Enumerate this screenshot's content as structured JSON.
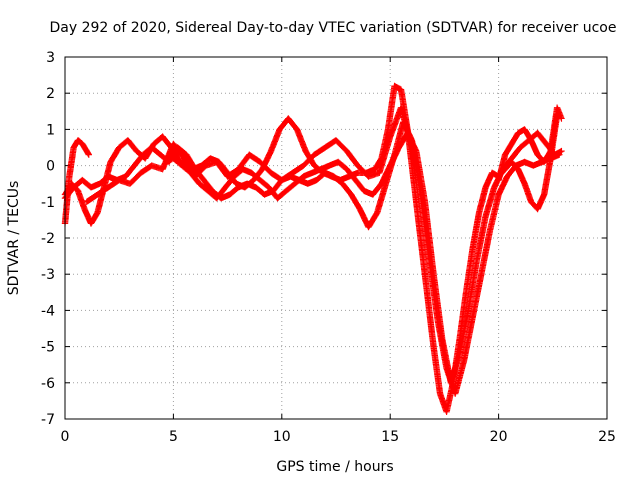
{
  "chart_data": {
    "type": "scatter",
    "title": "Day 292 of 2020, Sidereal Day-to-day VTEC variation (SDTVAR) for receiver ucoe",
    "xlabel": "GPS time / hours",
    "ylabel": "SDTVAR / TECUs",
    "xlim": [
      0,
      25
    ],
    "ylim": [
      -7,
      3
    ],
    "xticks": [
      0,
      5,
      10,
      15,
      20,
      25
    ],
    "yticks": [
      -7,
      -6,
      -5,
      -4,
      -3,
      -2,
      -1,
      0,
      1,
      2,
      3
    ],
    "grid": true,
    "marker": "+",
    "color": "#ff0000",
    "series": [
      {
        "x": [
          0.0,
          0.2,
          0.4,
          0.6,
          0.8,
          1.0,
          1.1
        ],
        "y": [
          -1.6,
          -0.3,
          0.5,
          0.7,
          0.6,
          0.4,
          0.3
        ]
      },
      {
        "x": [
          0.0,
          0.3,
          0.6,
          0.9,
          1.2,
          1.5,
          1.8,
          2.1,
          2.5,
          2.9,
          3.3,
          3.7,
          4.1,
          4.5,
          4.9,
          5.2,
          5.5,
          5.9,
          6.3,
          6.7,
          7.1,
          7.5,
          7.9,
          8.3,
          8.7,
          9.1,
          9.5,
          9.9,
          10.3,
          10.7,
          11.1,
          11.5,
          11.9,
          12.3,
          12.7,
          13.1,
          13.5,
          13.9,
          14.3,
          14.6,
          14.9,
          15.2,
          15.5,
          15.8,
          16.1,
          16.4,
          16.7,
          17.0,
          17.3,
          17.6,
          17.9,
          18.2,
          18.5,
          18.8,
          19.1,
          19.4,
          19.7,
          20.0,
          20.3,
          20.6,
          20.9,
          21.2,
          21.5,
          21.8,
          22.1,
          22.4,
          22.7
        ],
        "y": [
          -0.8,
          -0.5,
          -0.7,
          -1.2,
          -1.6,
          -1.3,
          -0.6,
          0.1,
          0.5,
          0.7,
          0.4,
          0.2,
          0.6,
          0.8,
          0.5,
          0.2,
          0.0,
          -0.1,
          0.0,
          0.2,
          0.1,
          -0.2,
          -0.5,
          -0.6,
          -0.4,
          -0.1,
          0.4,
          1.0,
          1.3,
          1.0,
          0.4,
          0.0,
          -0.2,
          -0.3,
          -0.4,
          -0.3,
          -0.2,
          -0.2,
          -0.1,
          0.2,
          1.0,
          2.2,
          2.1,
          1.0,
          -0.5,
          -2.0,
          -3.5,
          -5.0,
          -6.3,
          -6.8,
          -6.0,
          -4.8,
          -3.5,
          -2.3,
          -1.3,
          -0.6,
          -0.2,
          -0.3,
          -0.1,
          0.1,
          -0.1,
          -0.5,
          -1.0,
          -1.2,
          -0.8,
          0.2,
          1.4
        ]
      },
      {
        "x": [
          0.0,
          0.4,
          0.8,
          1.2,
          1.6,
          2.0,
          2.4,
          2.8,
          3.2,
          3.6,
          4.0,
          4.4,
          4.8,
          5.2,
          5.6,
          6.0,
          6.4,
          6.8,
          7.2,
          7.6,
          8.0,
          8.4,
          8.8,
          9.2,
          9.6,
          10.0,
          10.4,
          10.8,
          11.2,
          11.6,
          12.0,
          12.4,
          12.8,
          13.2,
          13.6,
          14.0,
          14.4,
          14.8,
          15.2,
          15.6,
          16.0,
          16.4,
          16.8,
          17.2,
          17.6,
          18.0,
          18.4,
          18.8,
          19.2,
          19.6,
          20.0,
          20.4,
          20.8,
          21.2,
          21.6,
          22.0,
          22.4,
          22.8
        ],
        "y": [
          -0.9,
          -0.6,
          -0.4,
          -0.6,
          -0.5,
          -0.3,
          -0.4,
          -0.3,
          0.0,
          0.3,
          0.5,
          0.3,
          0.1,
          0.5,
          0.3,
          -0.1,
          -0.4,
          -0.7,
          -0.9,
          -0.8,
          -0.6,
          -0.5,
          -0.6,
          -0.8,
          -0.7,
          -0.4,
          -0.3,
          -0.4,
          -0.5,
          -0.4,
          -0.2,
          -0.3,
          -0.5,
          -0.8,
          -1.2,
          -1.7,
          -1.3,
          -0.5,
          0.3,
          1.2,
          0.7,
          -0.8,
          -2.6,
          -4.3,
          -5.6,
          -6.3,
          -5.4,
          -4.2,
          -3.0,
          -1.8,
          -0.8,
          -0.3,
          0.0,
          0.1,
          0.0,
          0.1,
          0.2,
          0.3
        ]
      },
      {
        "x": [
          5.0,
          5.4,
          5.8,
          6.2,
          6.6,
          7.0,
          7.4,
          7.8,
          8.2,
          8.6,
          9.0,
          9.4,
          9.8,
          10.2,
          10.6,
          11.0,
          11.4,
          11.8,
          12.2,
          12.6,
          13.0,
          13.4,
          13.8,
          14.2,
          14.6,
          15.0,
          15.4,
          15.8,
          16.2,
          16.6,
          17.0,
          17.4,
          17.8,
          18.2,
          18.6,
          19.0,
          19.4,
          19.8,
          20.2,
          20.6,
          21.0,
          21.4,
          21.8,
          22.2,
          22.6,
          22.9
        ],
        "y": [
          0.2,
          0.0,
          -0.2,
          -0.5,
          -0.7,
          -0.9,
          -0.6,
          -0.3,
          -0.1,
          -0.2,
          -0.4,
          -0.6,
          -0.9,
          -0.7,
          -0.5,
          -0.3,
          -0.2,
          -0.1,
          0.0,
          0.1,
          -0.1,
          -0.4,
          -0.7,
          -0.8,
          -0.5,
          0.0,
          0.5,
          0.9,
          0.4,
          -1.0,
          -3.0,
          -4.8,
          -6.0,
          -5.2,
          -4.0,
          -2.6,
          -1.4,
          -0.6,
          -0.1,
          0.2,
          0.5,
          0.7,
          0.9,
          0.6,
          0.3,
          0.4
        ]
      },
      {
        "x": [
          1.0,
          1.5,
          2.0,
          2.5,
          3.0,
          3.5,
          4.0,
          4.5,
          5.0,
          5.5,
          6.0,
          6.5,
          7.0,
          7.5,
          8.0,
          8.5,
          9.0,
          9.5,
          10.0,
          10.5,
          11.0,
          11.5,
          12.0,
          12.5,
          13.0,
          13.5,
          14.0,
          14.5,
          15.0,
          15.5,
          16.0
        ],
        "y": [
          -1.0,
          -0.8,
          -0.6,
          -0.4,
          -0.5,
          -0.2,
          0.0,
          -0.1,
          0.6,
          0.2,
          -0.3,
          0.0,
          0.1,
          -0.3,
          -0.1,
          0.3,
          0.1,
          -0.2,
          -0.4,
          -0.2,
          0.0,
          0.3,
          0.5,
          0.7,
          0.4,
          0.0,
          -0.3,
          -0.2,
          0.8,
          1.6,
          0.5
        ]
      },
      {
        "x": [
          20.0,
          20.3,
          20.6,
          20.9,
          21.2,
          21.5,
          21.8,
          22.1,
          22.4,
          22.7,
          22.9
        ],
        "y": [
          -0.4,
          0.3,
          0.6,
          0.9,
          1.0,
          0.7,
          0.3,
          0.1,
          0.4,
          1.6,
          1.3
        ]
      }
    ]
  }
}
